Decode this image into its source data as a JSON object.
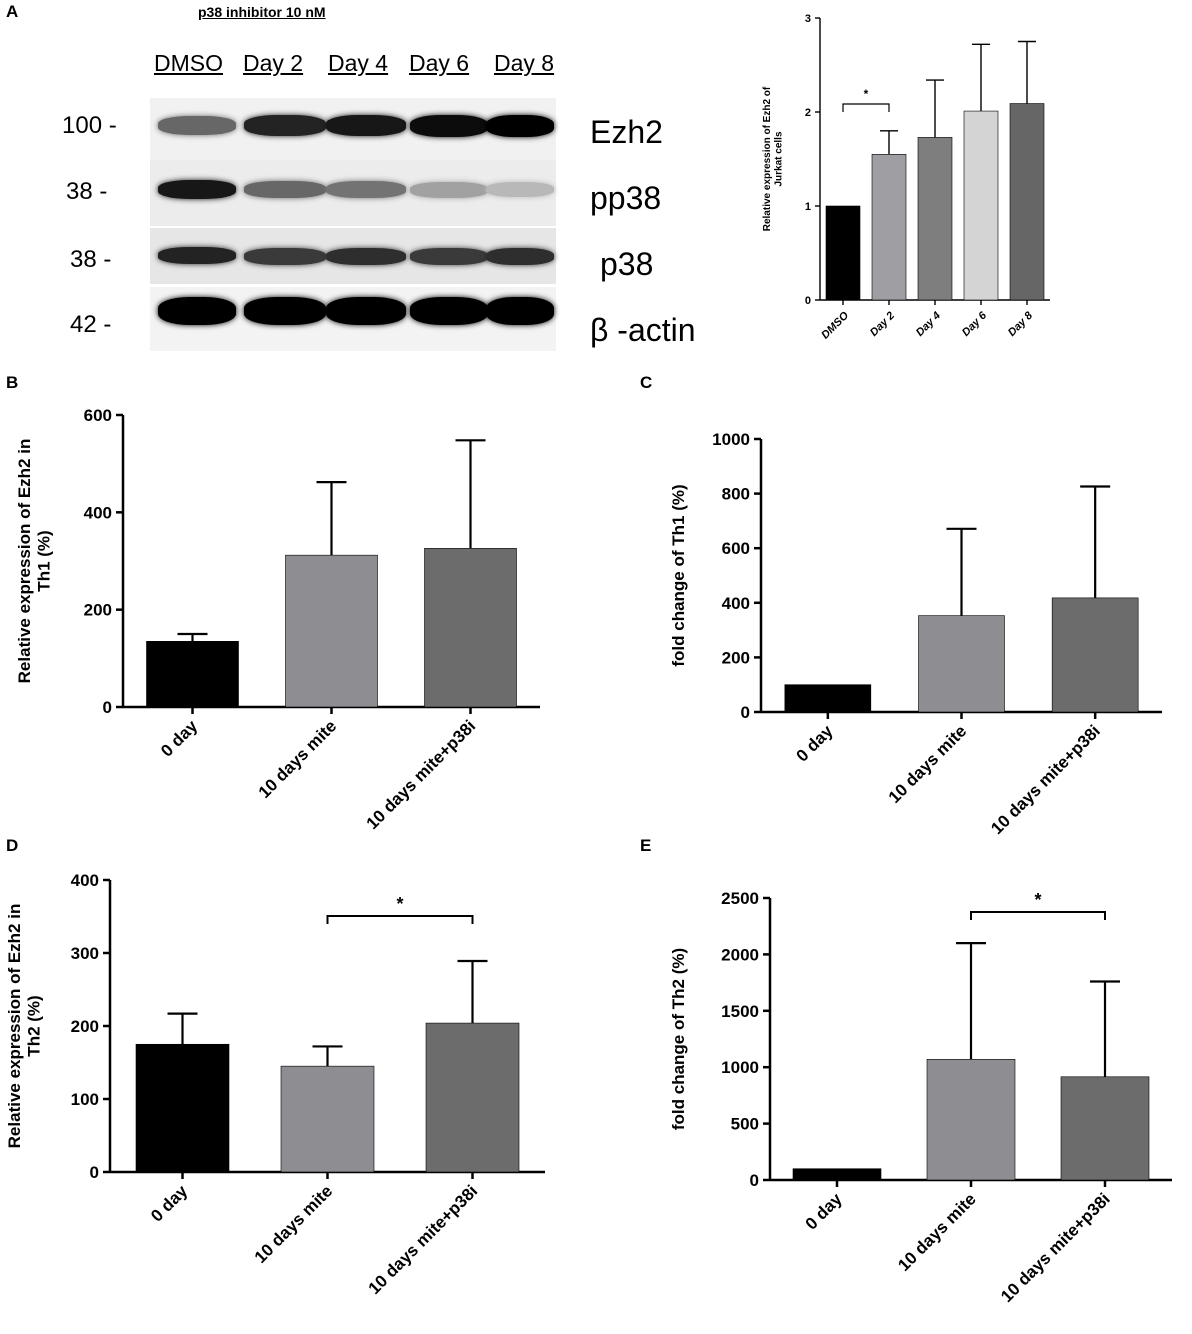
{
  "panelA": {
    "letter": "A",
    "blot": {
      "header": "p38 inhibitor 10 nM",
      "lanes": [
        "DMSO",
        "Day 2",
        "Day 4",
        "Day 6",
        "Day 8"
      ],
      "rows": [
        {
          "mw": "100 -",
          "protein": "Ezh2",
          "intensity": [
            0.55,
            0.85,
            0.9,
            0.95,
            1.0
          ]
        },
        {
          "mw": "38 -",
          "protein": "pp38",
          "intensity": [
            0.9,
            0.55,
            0.5,
            0.3,
            0.2
          ]
        },
        {
          "mw": "38 -",
          "protein": "p38",
          "intensity": [
            0.85,
            0.75,
            0.8,
            0.75,
            0.8
          ]
        },
        {
          "mw": "42 -",
          "protein": "β -actin",
          "intensity": [
            1.0,
            1.0,
            1.0,
            1.0,
            1.0
          ]
        }
      ]
    }
  },
  "chart_data": [
    {
      "panel": "A",
      "type": "bar",
      "ylabel": "Relative expression of Ezh2 of Jurkat cells",
      "xlabel": "",
      "categories": [
        "DMSO",
        "Day 2",
        "Day 4",
        "Day 6",
        "Day 8"
      ],
      "values": [
        1.0,
        1.55,
        1.73,
        2.01,
        2.09
      ],
      "errors": [
        0,
        0.25,
        0.61,
        0.71,
        0.66
      ],
      "colors": [
        "#000000",
        "#9e9ea3",
        "#7e7e7e",
        "#d4d4d4",
        "#666666"
      ],
      "ylim": [
        0,
        3
      ],
      "yticks": [
        "0",
        "1",
        "2",
        "3"
      ],
      "significance": [
        {
          "from": 0,
          "to": 1,
          "label": "*"
        }
      ]
    },
    {
      "panel": "B",
      "type": "bar",
      "ylabel": "Relative expression of Ezh2 in Th1 (%)",
      "xlabel": "",
      "categories": [
        "0 day",
        "10 days mite",
        "10 days mite+p38i"
      ],
      "values": [
        135,
        312,
        326
      ],
      "errors": [
        15,
        150,
        222
      ],
      "colors": [
        "#000000",
        "#8d8d92",
        "#6c6c6c"
      ],
      "ylim": [
        0,
        600
      ],
      "yticks": [
        "0",
        "200",
        "400",
        "600"
      ],
      "significance": []
    },
    {
      "panel": "C",
      "type": "bar",
      "ylabel": "fold change of Th1 (%)",
      "xlabel": "",
      "categories": [
        "0 day",
        "10 days mite",
        "10 days mite+p38i"
      ],
      "values": [
        100,
        353,
        418
      ],
      "errors": [
        0,
        318,
        408
      ],
      "colors": [
        "#000000",
        "#8d8d92",
        "#6c6c6c"
      ],
      "ylim": [
        0,
        1000
      ],
      "yticks": [
        "0",
        "200",
        "400",
        "600",
        "800",
        "1000"
      ],
      "significance": []
    },
    {
      "panel": "D",
      "type": "bar",
      "ylabel": "Relative expression of Ezh2 in Th2 (%)",
      "xlabel": "",
      "categories": [
        "0 day",
        "10 days mite",
        "10 days mite+p38i"
      ],
      "values": [
        175,
        145,
        204
      ],
      "errors": [
        42,
        27,
        85
      ],
      "colors": [
        "#000000",
        "#8d8d92",
        "#6c6c6c"
      ],
      "ylim": [
        0,
        400
      ],
      "yticks": [
        "0",
        "100",
        "200",
        "300",
        "400"
      ],
      "significance": [
        {
          "from": 1,
          "to": 2,
          "label": "*"
        }
      ]
    },
    {
      "panel": "E",
      "type": "bar",
      "ylabel": "fold change of Th2 (%)",
      "xlabel": "",
      "categories": [
        "0 day",
        "10 days mite",
        "10 days mite+p38i"
      ],
      "values": [
        100,
        1070,
        915
      ],
      "errors": [
        0,
        1030,
        845
      ],
      "colors": [
        "#000000",
        "#8d8d92",
        "#6c6c6c"
      ],
      "ylim": [
        0,
        2500
      ],
      "yticks": [
        "0",
        "500",
        "1000",
        "1500",
        "2000",
        "2500"
      ],
      "significance": [
        {
          "from": 1,
          "to": 2,
          "label": "*"
        }
      ]
    }
  ]
}
